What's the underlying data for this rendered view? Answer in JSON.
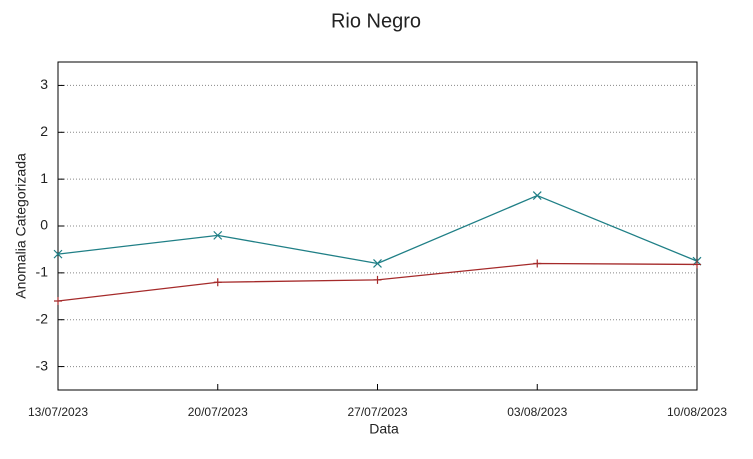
{
  "chart_data": {
    "type": "line",
    "title": "Rio Negro",
    "x_label": "Data",
    "y_label": "Anomalia Categorizada",
    "categories": [
      "13/07/2023",
      "20/07/2023",
      "27/07/2023",
      "03/08/2023",
      "10/08/2023"
    ],
    "series": [
      {
        "color": "#1f7f86",
        "marker": "x",
        "values": [
          -0.6,
          -0.2,
          -0.8,
          0.65,
          -0.75
        ]
      },
      {
        "color": "#a52a2a",
        "marker": "+",
        "values": [
          -1.6,
          -1.2,
          -1.15,
          -0.8,
          -0.82
        ]
      }
    ],
    "ylim": [
      -3.5,
      3.5
    ],
    "yticks": [
      -3,
      -2,
      -1,
      0,
      1,
      2,
      3
    ],
    "grid": true
  }
}
